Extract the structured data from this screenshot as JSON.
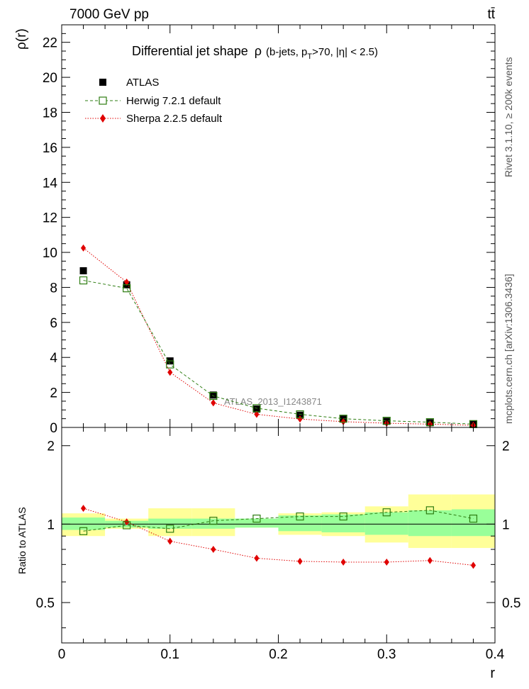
{
  "header": {
    "energy_label": "7000 GeV pp",
    "process_label": "tt̄"
  },
  "side_labels": {
    "rivet": "Rivet 3.1.10, ≥ 200k events",
    "mcplots": "mcplots.cern.ch [arXiv:1306.3436]"
  },
  "chart_data": [
    {
      "type": "line",
      "panel": "main",
      "title": {
        "main": "Differential jet shape",
        "rho": "ρ",
        "cuts_pre": "(b-jets, p",
        "cuts_sub": "T",
        "cuts_post": ">70, |η| < 2.5)"
      },
      "ylabel": "ρ(r)",
      "xlabel": "",
      "xlim": [
        0,
        0.4
      ],
      "ylim": [
        0,
        23
      ],
      "yticks": [
        0,
        2,
        4,
        6,
        8,
        10,
        12,
        14,
        16,
        18,
        20,
        22
      ],
      "ytick_labels": [
        "0",
        "2",
        "4",
        "6",
        "8",
        "10",
        "12",
        "14",
        "16",
        "18",
        "20",
        "22"
      ],
      "grid": false,
      "legend_position": "top-left",
      "watermark": "ATLAS_2013_I1243871",
      "x": [
        0.02,
        0.06,
        0.1,
        0.14,
        0.18,
        0.22,
        0.26,
        0.3,
        0.34,
        0.38
      ],
      "series": [
        {
          "name": "ATLAS",
          "style": "data",
          "color": "#000000",
          "values": [
            8.95,
            8.15,
            3.8,
            1.85,
            1.05,
            0.7,
            0.48,
            0.35,
            0.27,
            0.18
          ]
        },
        {
          "name": "Herwig 7.2.1 default",
          "style": "open-square",
          "color": "#2e7d12",
          "values": [
            8.4,
            7.95,
            3.6,
            1.8,
            1.1,
            0.75,
            0.5,
            0.38,
            0.3,
            0.19
          ]
        },
        {
          "name": "Sherpa 2.2.5 default",
          "style": "diamond",
          "color": "#e00000",
          "values": [
            10.25,
            8.3,
            3.15,
            1.4,
            0.75,
            0.48,
            0.33,
            0.24,
            0.19,
            0.12
          ]
        }
      ]
    },
    {
      "type": "line",
      "panel": "ratio",
      "ylabel": "Ratio to ATLAS",
      "xlabel": "r",
      "xlim": [
        0,
        0.4
      ],
      "ylim": [
        0.35,
        2.35
      ],
      "yticks": [
        0.5,
        1,
        2
      ],
      "ytick_labels": [
        "0.5",
        "1",
        "2"
      ],
      "xticks": [
        0,
        0.1,
        0.2,
        0.3,
        0.4
      ],
      "xtick_labels": [
        "0",
        "0.1",
        "0.2",
        "0.3",
        "0.4"
      ],
      "band_edges": [
        0,
        0.04,
        0.08,
        0.12,
        0.16,
        0.2,
        0.24,
        0.28,
        0.32,
        0.36,
        0.4
      ],
      "band_stat": [
        [
          0.95,
          1.06
        ],
        [
          0.97,
          1.03
        ],
        [
          0.96,
          1.05
        ],
        [
          0.96,
          1.05
        ],
        [
          0.97,
          1.05
        ],
        [
          0.94,
          1.08
        ],
        [
          0.93,
          1.09
        ],
        [
          0.91,
          1.11
        ],
        [
          0.9,
          1.13
        ],
        [
          0.9,
          1.14
        ]
      ],
      "band_total": [
        [
          0.9,
          1.1
        ],
        [
          0.96,
          1.05
        ],
        [
          0.9,
          1.15
        ],
        [
          0.9,
          1.15
        ],
        [
          0.97,
          1.04
        ],
        [
          0.91,
          1.1
        ],
        [
          0.9,
          1.11
        ],
        [
          0.85,
          1.17
        ],
        [
          0.81,
          1.3
        ],
        [
          0.81,
          1.3
        ]
      ],
      "band_colors": {
        "total": "#ffff99",
        "stat": "#99ff99"
      },
      "x": [
        0.02,
        0.06,
        0.1,
        0.14,
        0.18,
        0.22,
        0.26,
        0.3,
        0.34,
        0.38
      ],
      "series": [
        {
          "name": "Herwig 7.2.1 default",
          "style": "open-square",
          "color": "#2e7d12",
          "values": [
            0.94,
            0.99,
            0.96,
            1.03,
            1.05,
            1.07,
            1.07,
            1.11,
            1.13,
            1.05
          ]
        },
        {
          "name": "Sherpa 2.2.5 default",
          "style": "diamond",
          "color": "#e00000",
          "values": [
            1.15,
            1.02,
            0.86,
            0.8,
            0.74,
            0.72,
            0.715,
            0.715,
            0.725,
            0.695
          ]
        }
      ]
    }
  ]
}
